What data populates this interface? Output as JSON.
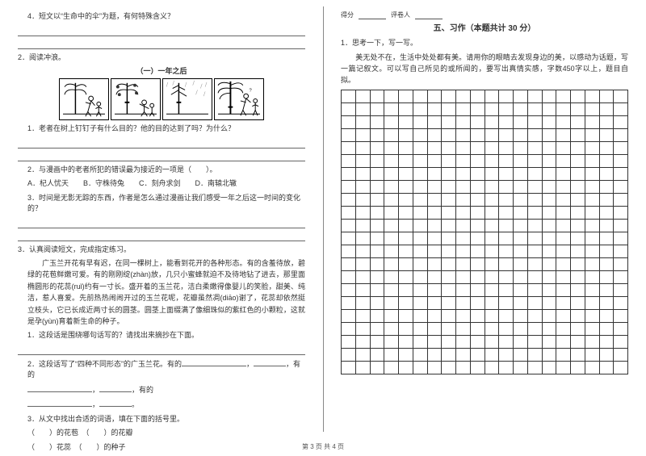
{
  "left": {
    "q4": "4．短文以“生命中的伞”为题，有何特殊含义？",
    "q2_main": "2．阅读冲浪。",
    "comic_title": "（一）一年之后",
    "c1_q1": "1．老者在树上钉钉子有什么目的？他的目的达到了吗？为什么？",
    "c1_q2": "2．与漫画中的老者所犯的错误最为接近的一项是（　　）。",
    "c1_opts": "A．杞人忧天　　B．守株待兔　　C．刻舟求剑　　D．南辕北辙",
    "c1_q3": "3．时间是无影无踪的东西，作者是怎么通过漫画让我们感受一年之后这一时间的变化的？",
    "q3_main": "3．认真阅读短文，完成指定练习。",
    "passage": "　　广玉兰开花有早有迟，在同一棵树上，能看到花开的各种形态。有的含羞待放，碧绿的花苞鲜嫩可爱。有的刚刚绽(zhàn)放，几只小蜜蜂就迫不及待地钻了进去，那里面椭圆形的花蕊(ruǐ)约有一寸长。盛开着的玉兰花，洁白柔嫩得像婴儿的笑脸，甜美、纯洁，惹人喜爱。先前热热闹闹开过的玉兰花呢，花瓣虽然凋(diāo)谢了，花蕊却依然挺立枝头，它已长成近两寸长的圆茎。圆茎上面缀满了像细珠似的紫红色的小颗粒，这就是孕(yùn)育着新生命的种子。",
    "p_q1": "1．这段话是围绕哪句话写的？请找出来摘抄在下面。",
    "p_q2a": "2．这段话写了“四种不同形态”的广玉兰花。有的",
    "p_q2b": "，有的",
    "p_q2c": "，有的",
    "p_q3": "3．从文中找出合适的词语，填在下面的括号里。",
    "p_q3_line1": "（　　）的花苞　（　　）的花瓣",
    "p_q3_line2": "（　　）花蕊　（　　）的种子"
  },
  "right": {
    "score_label1": "得分",
    "score_label2": "评卷人",
    "section_title": "五、习作（本题共计 30 分）",
    "r_q1": "1．思考一下，写一写。",
    "r_prompt": "　　美无处不在，生活中处处都有美。请用你的眼睛去发现身边的美，以感动为话题，写一篇记叙文。可以写自己所见的或所闻的，要写出真情实感，字数450字以上，题目自拟。",
    "grid": {
      "rows": 22,
      "cols": 20
    }
  },
  "footer": "第 3 页  共 4 页",
  "colors": {
    "text": "#333333",
    "border": "#333333",
    "line": "#666666",
    "bg": "#ffffff"
  }
}
